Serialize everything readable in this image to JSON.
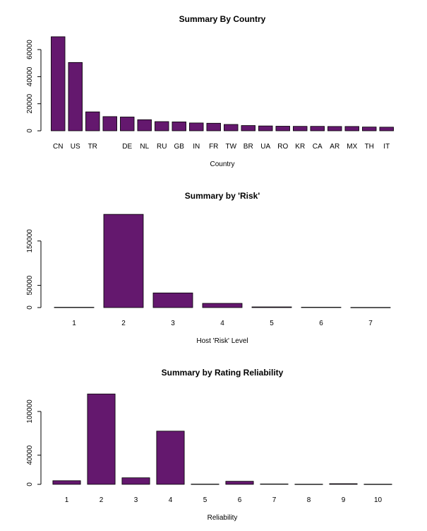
{
  "bar_color": "#64186e",
  "chart_data": [
    {
      "type": "bar",
      "title": "Summary By Country",
      "xlabel": "Country",
      "ylabel": "",
      "ylim": [
        0,
        70000
      ],
      "yticks": [
        0,
        20000,
        40000,
        60000
      ],
      "categories": [
        "CN",
        "US",
        "TR",
        "",
        "DE",
        "NL",
        "RU",
        "GB",
        "IN",
        "FR",
        "TW",
        "BR",
        "UA",
        "RO",
        "KR",
        "CA",
        "AR",
        "MX",
        "TH",
        "IT"
      ],
      "values": [
        69500,
        50500,
        14000,
        10500,
        10200,
        8200,
        6800,
        6600,
        5800,
        5600,
        4700,
        3900,
        3600,
        3400,
        3300,
        3300,
        3200,
        3200,
        2800,
        2700
      ]
    },
    {
      "type": "bar",
      "title": "Summary by 'Risk'",
      "xlabel": "Host 'Risk' Level",
      "ylabel": "",
      "ylim": [
        0,
        215000
      ],
      "yticks": [
        0,
        50000,
        150000
      ],
      "categories": [
        "1",
        "2",
        "3",
        "4",
        "5",
        "6",
        "7"
      ],
      "values": [
        700,
        210000,
        33000,
        9500,
        1500,
        800,
        400
      ]
    },
    {
      "type": "bar",
      "title": "Summary by Rating Reliability",
      "xlabel": "Reliability",
      "ylabel": "",
      "ylim": [
        0,
        130000
      ],
      "yticks": [
        0,
        40000,
        100000
      ],
      "categories": [
        "1",
        "2",
        "3",
        "4",
        "5",
        "6",
        "7",
        "8",
        "9",
        "10"
      ],
      "values": [
        5000,
        124000,
        9000,
        73000,
        300,
        4200,
        500,
        200,
        900,
        200
      ]
    }
  ]
}
